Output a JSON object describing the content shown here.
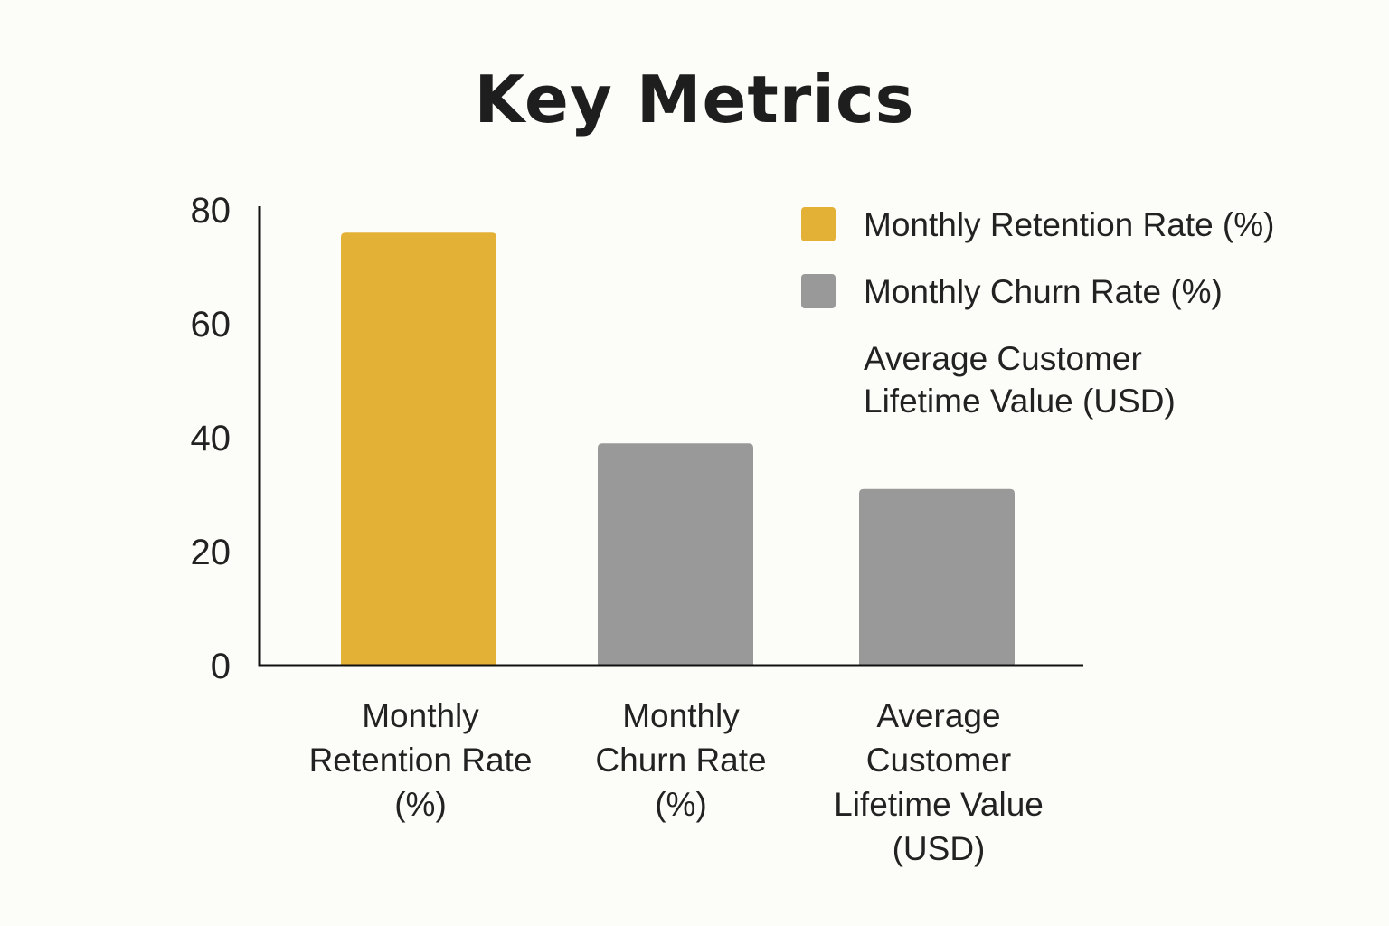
{
  "chart_data": {
    "type": "bar",
    "title": "Key Metrics",
    "xlabel": "",
    "ylabel": "",
    "categories": [
      [
        "Monthly",
        "Retention Rate",
        "(%)"
      ],
      [
        "Monthly",
        "Churn Rate",
        "(%)"
      ],
      [
        "Average",
        "Customer",
        "Lifetime Value",
        "(USD)"
      ]
    ],
    "values": [
      76,
      39,
      31
    ],
    "bar_colors": [
      "#e3b135",
      "#999999",
      "#999999"
    ],
    "ylim": [
      0,
      80
    ],
    "yticks": [
      0,
      20,
      40,
      60,
      80
    ],
    "grid": false,
    "legend": {
      "placement": "top-right",
      "entries": [
        {
          "label": [
            "Monthly Retention Rate (%)"
          ],
          "color": "#e3b135",
          "swatch": true
        },
        {
          "label": [
            "Monthly Churn Rate (%)"
          ],
          "color": "#999999",
          "swatch": true
        },
        {
          "label": [
            "Average Customer",
            "Lifetime Value (USD)"
          ],
          "color": "",
          "swatch": false
        }
      ]
    }
  }
}
